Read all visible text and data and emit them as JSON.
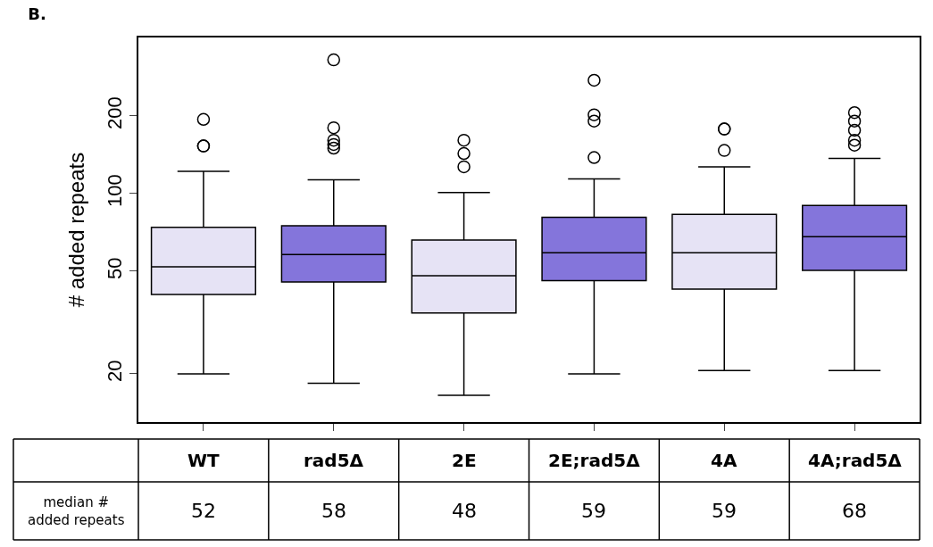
{
  "chart_data": {
    "type": "box",
    "title": "B.",
    "ylabel": "# added repeats",
    "categories": [
      "WT",
      "rad5Δ",
      "2E",
      "2E;rad5Δ",
      "4A",
      "4A;rad5Δ"
    ],
    "colors": [
      "#e6e3f5",
      "#8475db",
      "#e6e3f5",
      "#8475db",
      "#e6e3f5",
      "#8475db"
    ],
    "boxes": [
      {
        "low": 20,
        "q1": 40.6,
        "median": 52,
        "q3": 74,
        "high": 122,
        "outliers": [
          194,
          153,
          153
        ]
      },
      {
        "low": 18.4,
        "q1": 45.4,
        "median": 58,
        "q3": 75,
        "high": 113,
        "outliers": [
          330,
          180,
          161,
          155,
          150
        ]
      },
      {
        "low": 16.5,
        "q1": 34.4,
        "median": 48,
        "q3": 66,
        "high": 101,
        "outliers": [
          161,
          143,
          127
        ]
      },
      {
        "low": 20,
        "q1": 46,
        "median": 59,
        "q3": 81,
        "high": 114,
        "outliers": [
          275,
          202,
          191,
          138
        ]
      },
      {
        "low": 20.6,
        "q1": 42.6,
        "median": 59,
        "q3": 83,
        "high": 127,
        "outliers": [
          178,
          178,
          147
        ]
      },
      {
        "low": 20.6,
        "q1": 50.4,
        "median": 68,
        "q3": 90,
        "high": 137,
        "outliers": [
          206,
          191,
          176,
          161,
          154
        ]
      }
    ],
    "log": true,
    "ylim": [
      13,
      403
    ],
    "yticks": [
      20,
      50,
      100,
      200
    ],
    "tick_labels": "y",
    "value_labels": [
      "52",
      "58",
      "48",
      "59",
      "59",
      "68"
    ],
    "annotations": [
      "median #\nadded repeats"
    ]
  }
}
